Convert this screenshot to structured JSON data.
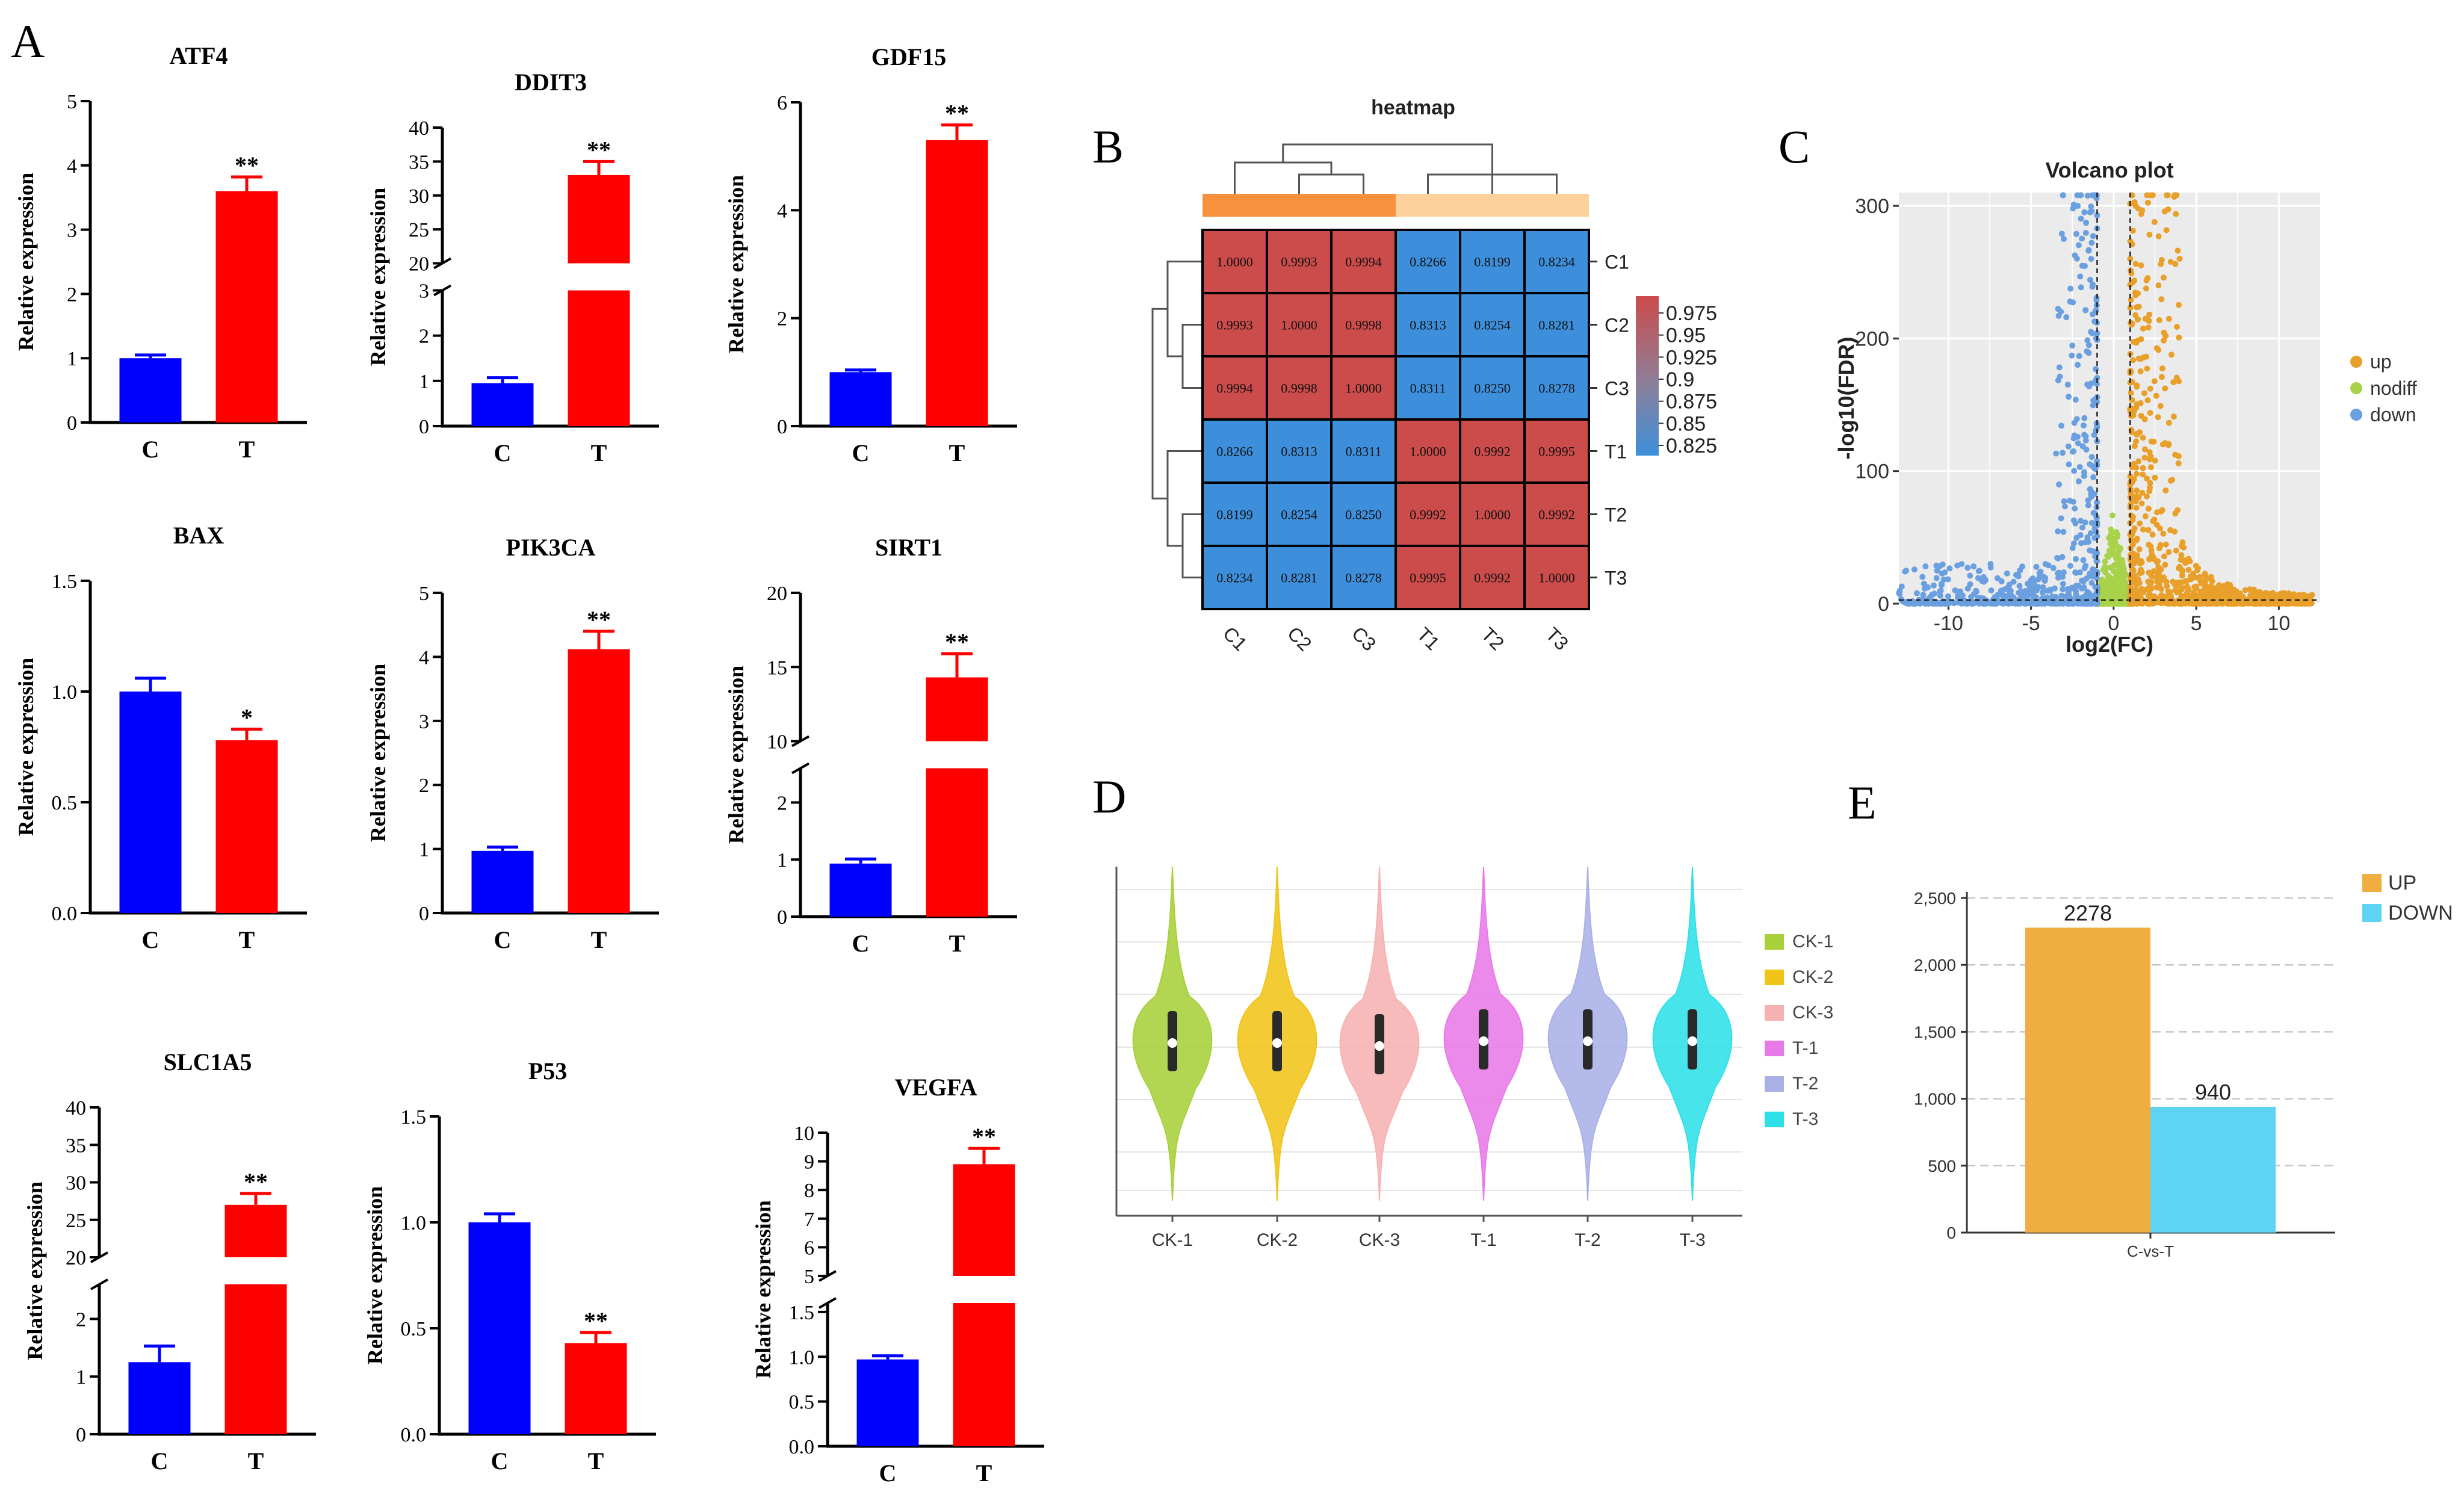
{
  "panel_labels": [
    "A",
    "B",
    "C",
    "D",
    "E"
  ],
  "chart_data": [
    {
      "type": "bar",
      "title": "ATF4",
      "ylabel": "Relative expression",
      "categories": [
        "C",
        "T"
      ],
      "values": [
        1.0,
        3.6
      ],
      "errors": [
        0.05,
        0.22
      ],
      "significance": [
        "",
        "**"
      ],
      "yticks": [
        "0",
        "1",
        "2",
        "3",
        "4",
        "5"
      ],
      "ylim": [
        0,
        5
      ],
      "axis_break": null
    },
    {
      "type": "bar",
      "title": "DDIT3",
      "ylabel": "Relative expression",
      "categories": [
        "C",
        "T"
      ],
      "values": [
        0.95,
        33.0
      ],
      "errors": [
        0.12,
        2.0
      ],
      "significance": [
        "",
        "**"
      ],
      "yticks": [
        "0",
        "1",
        "2",
        "3",
        "20",
        "25",
        "30",
        "35",
        "40"
      ],
      "ylim": [
        0,
        40
      ],
      "axis_break": [
        3,
        20
      ]
    },
    {
      "type": "bar",
      "title": "GDF15",
      "ylabel": "Relative expression",
      "categories": [
        "C",
        "T"
      ],
      "values": [
        1.0,
        5.3
      ],
      "errors": [
        0.04,
        0.28
      ],
      "significance": [
        "",
        "**"
      ],
      "yticks": [
        "0",
        "2",
        "4",
        "6"
      ],
      "ylim": [
        0,
        6
      ],
      "axis_break": null
    },
    {
      "type": "bar",
      "title": "BAX",
      "ylabel": "Relative expression",
      "categories": [
        "C",
        "T"
      ],
      "values": [
        1.0,
        0.78
      ],
      "errors": [
        0.06,
        0.05
      ],
      "significance": [
        "",
        "*"
      ],
      "yticks": [
        "0.0",
        "0.5",
        "1.0",
        "1.5"
      ],
      "ylim": [
        0,
        1.5
      ],
      "axis_break": null
    },
    {
      "type": "bar",
      "title": "PIK3CA",
      "ylabel": "Relative expression",
      "categories": [
        "C",
        "T"
      ],
      "values": [
        0.97,
        4.12
      ],
      "errors": [
        0.06,
        0.28
      ],
      "significance": [
        "",
        "**"
      ],
      "yticks": [
        "0",
        "1",
        "2",
        "3",
        "4",
        "5"
      ],
      "ylim": [
        0,
        5
      ],
      "axis_break": null
    },
    {
      "type": "bar",
      "title": "SIRT1",
      "ylabel": "Relative expression",
      "categories": [
        "C",
        "T"
      ],
      "values": [
        0.93,
        14.3
      ],
      "errors": [
        0.08,
        1.6
      ],
      "significance": [
        "",
        "**"
      ],
      "yticks": [
        "0",
        "1",
        "2",
        "10",
        "15",
        "20"
      ],
      "ylim": [
        0,
        20
      ],
      "axis_break": [
        2.6,
        10
      ]
    },
    {
      "type": "bar",
      "title": "SLC1A5",
      "ylabel": "Relative expression",
      "categories": [
        "C",
        "T"
      ],
      "values": [
        1.25,
        27.0
      ],
      "errors": [
        0.28,
        1.5
      ],
      "significance": [
        "",
        "**"
      ],
      "yticks": [
        "0",
        "1",
        "2",
        "20",
        "25",
        "30",
        "35",
        "40"
      ],
      "ylim": [
        0,
        40
      ],
      "axis_break": [
        2.6,
        20
      ]
    },
    {
      "type": "bar",
      "title": "P53",
      "ylabel": "Relative expression",
      "categories": [
        "C",
        "T"
      ],
      "values": [
        1.0,
        0.43
      ],
      "errors": [
        0.04,
        0.05
      ],
      "significance": [
        "",
        "**"
      ],
      "yticks": [
        "0.0",
        "0.5",
        "1.0",
        "1.5"
      ],
      "ylim": [
        0,
        1.5
      ],
      "axis_break": null
    },
    {
      "type": "bar",
      "title": "VEGFA",
      "ylabel": "Relative expression",
      "categories": [
        "C",
        "T"
      ],
      "values": [
        0.97,
        8.9
      ],
      "errors": [
        0.04,
        0.55
      ],
      "significance": [
        "",
        "**"
      ],
      "yticks": [
        "0.0",
        "0.5",
        "1.0",
        "1.5",
        "5",
        "6",
        "7",
        "8",
        "9",
        "10"
      ],
      "ylim": [
        0,
        10
      ],
      "axis_break": [
        1.6,
        5
      ]
    },
    {
      "type": "heatmap",
      "title": "heatmap",
      "rows": [
        "C1",
        "C2",
        "C3",
        "T1",
        "T2",
        "T3"
      ],
      "columns": [
        "C1",
        "C2",
        "C3",
        "T1",
        "T2",
        "T3"
      ],
      "values": [
        [
          "1.0000",
          "0.9993",
          "0.9994",
          "0.8266",
          "0.8199",
          "0.8234"
        ],
        [
          "0.9993",
          "1.0000",
          "0.9998",
          "0.8313",
          "0.8254",
          "0.8281"
        ],
        [
          "0.9994",
          "0.9998",
          "1.0000",
          "0.8311",
          "0.8250",
          "0.8278"
        ],
        [
          "0.8266",
          "0.8313",
          "0.8311",
          "1.0000",
          "0.9992",
          "0.9995"
        ],
        [
          "0.8199",
          "0.8254",
          "0.8250",
          "0.9992",
          "1.0000",
          "0.9992"
        ],
        [
          "0.8234",
          "0.8281",
          "0.8278",
          "0.9995",
          "0.9992",
          "1.0000"
        ]
      ],
      "colorbar_ticks": [
        "0.975",
        "0.95",
        "0.925",
        "0.9",
        "0.875",
        "0.85",
        "0.825"
      ],
      "group_colors": [
        "#f7913d",
        "#fdd09c"
      ],
      "high_color": "#cc4b4b",
      "low_color": "#3d8fdb"
    },
    {
      "type": "scatter",
      "title": "Volcano plot",
      "xlabel": "log2(FC)",
      "ylabel": "-log10(FDR)",
      "xticks": [
        "-10",
        "-5",
        "0",
        "5",
        "10"
      ],
      "yticks": [
        "0",
        "100",
        "200",
        "300"
      ],
      "xlim": [
        -13,
        12.5
      ],
      "ylim": [
        0,
        310
      ],
      "thresholds": {
        "log2fc": [
          -1,
          1
        ]
      },
      "legend": [
        {
          "name": "up",
          "color": "#e8a02a"
        },
        {
          "name": "nodiff",
          "color": "#a8d24a"
        },
        {
          "name": "down",
          "color": "#6a9fe0"
        }
      ]
    },
    {
      "type": "violin",
      "categories": [
        "CK-1",
        "CK-2",
        "CK-3",
        "T-1",
        "T-2",
        "T-3"
      ],
      "colors": [
        "#a8d03a",
        "#f0c419",
        "#f6b2b2",
        "#e87ae8",
        "#aab0e6",
        "#2ee0e8"
      ],
      "legend": [
        "CK-1",
        "CK-2",
        "CK-3",
        "T-1",
        "T-2",
        "T-3"
      ]
    },
    {
      "type": "bar",
      "categories": [
        "C-vs-T"
      ],
      "series": [
        {
          "name": "UP",
          "values": [
            2278
          ],
          "color": "#f0ad40"
        },
        {
          "name": "DOWN",
          "values": [
            940
          ],
          "color": "#5fd3f3"
        }
      ],
      "yticks": [
        "0",
        "500",
        "1,000",
        "1,500",
        "2,000",
        "2,500"
      ],
      "ylim": [
        0,
        2500
      ]
    }
  ]
}
